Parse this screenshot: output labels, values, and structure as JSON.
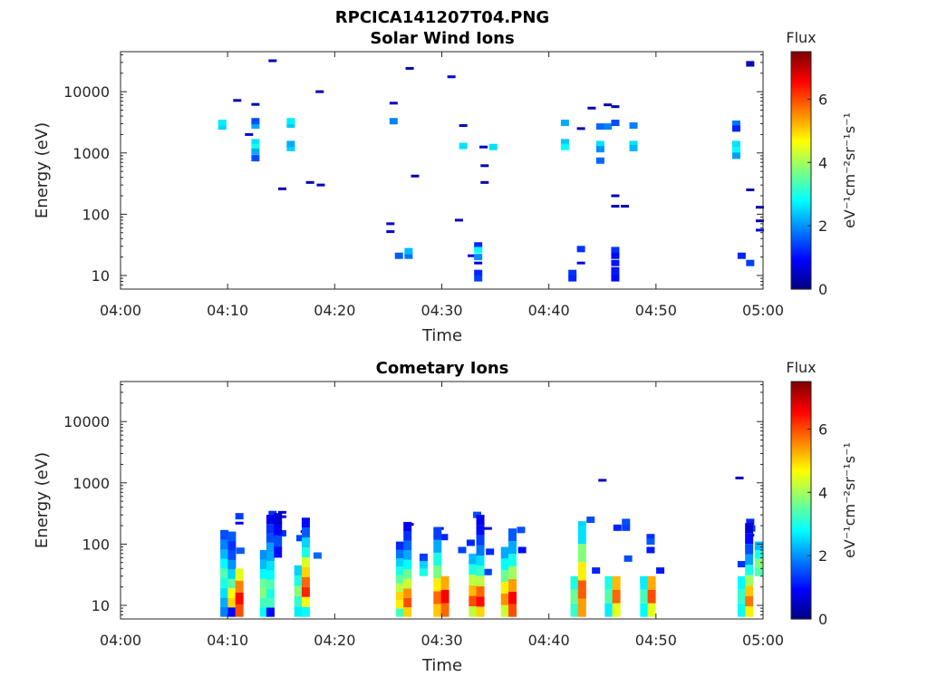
{
  "figure": {
    "title": "RPCICA141207T04.PNG",
    "colorbar_label": "Flux",
    "colorbar_unit": "eV⁻¹cm⁻²sr⁻¹s⁻¹",
    "colors": {
      "axis": "#262626",
      "background": "#ffffff",
      "colormap": [
        "#00007f",
        "#0000ff",
        "#007fff",
        "#00ffff",
        "#7fff7f",
        "#ffff00",
        "#ff7f00",
        "#ff0000",
        "#7f0000"
      ]
    }
  },
  "chart_data": [
    {
      "type": "heatmap",
      "title": "Solar Wind Ions",
      "xlabel": "Time",
      "ylabel": "Energy (eV)",
      "x_ticks": [
        "04:00",
        "04:10",
        "04:20",
        "04:30",
        "04:40",
        "04:50",
        "05:00"
      ],
      "xlim_minutes": [
        0,
        60
      ],
      "y_ticks": [
        "10",
        "100",
        "1000",
        "10000"
      ],
      "y_scale": "log",
      "ylim": [
        6,
        45000
      ],
      "colorbar": {
        "label": "Flux",
        "ticks": [
          "0",
          "2",
          "4",
          "6"
        ],
        "range": [
          0,
          7.5
        ]
      },
      "cells": [
        {
          "t": 9.5,
          "e": 2700,
          "v": 2.5
        },
        {
          "t": 9.5,
          "e": 3100,
          "v": 2.7
        },
        {
          "t": 10.9,
          "e": 7200,
          "v": 0.4
        },
        {
          "t": 12.0,
          "e": 2000,
          "v": 0.6
        },
        {
          "t": 12.6,
          "e": 6200,
          "v": 0.5
        },
        {
          "t": 12.6,
          "e": 2800,
          "v": 2.2
        },
        {
          "t": 12.6,
          "e": 3300,
          "v": 1.5
        },
        {
          "t": 12.6,
          "e": 1500,
          "v": 2.6
        },
        {
          "t": 12.6,
          "e": 1250,
          "v": 3.0
        },
        {
          "t": 12.6,
          "e": 1050,
          "v": 2.2
        },
        {
          "t": 12.6,
          "e": 820,
          "v": 1.5
        },
        {
          "t": 14.2,
          "e": 32000,
          "v": 0.4
        },
        {
          "t": 15.1,
          "e": 260,
          "v": 0.4
        },
        {
          "t": 15.9,
          "e": 2900,
          "v": 2.4
        },
        {
          "t": 15.9,
          "e": 3300,
          "v": 2.7
        },
        {
          "t": 15.9,
          "e": 1200,
          "v": 2.5
        },
        {
          "t": 15.9,
          "e": 1400,
          "v": 2.2
        },
        {
          "t": 17.7,
          "e": 330,
          "v": 0.4
        },
        {
          "t": 18.7,
          "e": 300,
          "v": 0.5
        },
        {
          "t": 18.6,
          "e": 10000,
          "v": 0.4
        },
        {
          "t": 25.5,
          "e": 6500,
          "v": 0.5
        },
        {
          "t": 25.5,
          "e": 3300,
          "v": 1.9
        },
        {
          "t": 25.2,
          "e": 70,
          "v": 0.6
        },
        {
          "t": 25.2,
          "e": 52,
          "v": 0.7
        },
        {
          "t": 26.0,
          "e": 21,
          "v": 1.6
        },
        {
          "t": 26.9,
          "e": 21,
          "v": 1.8
        },
        {
          "t": 26.9,
          "e": 25,
          "v": 2.3
        },
        {
          "t": 27.0,
          "e": 24000,
          "v": 0.4
        },
        {
          "t": 27.5,
          "e": 420,
          "v": 0.4
        },
        {
          "t": 30.9,
          "e": 17500,
          "v": 0.7
        },
        {
          "t": 31.6,
          "e": 80,
          "v": 0.5
        },
        {
          "t": 32.0,
          "e": 2800,
          "v": 0.5
        },
        {
          "t": 32.0,
          "e": 1300,
          "v": 2.6
        },
        {
          "t": 32.8,
          "e": 21,
          "v": 0.9
        },
        {
          "t": 33.4,
          "e": 31,
          "v": 1.2
        },
        {
          "t": 33.4,
          "e": 26,
          "v": 2.8
        },
        {
          "t": 33.4,
          "e": 20,
          "v": 2.0
        },
        {
          "t": 33.4,
          "e": 16,
          "v": 0.6
        },
        {
          "t": 33.4,
          "e": 11,
          "v": 1.2
        },
        {
          "t": 33.4,
          "e": 9,
          "v": 1.4
        },
        {
          "t": 33.9,
          "e": 1250,
          "v": 0.5
        },
        {
          "t": 34.0,
          "e": 620,
          "v": 0.4
        },
        {
          "t": 34.0,
          "e": 330,
          "v": 0.4
        },
        {
          "t": 34.8,
          "e": 1250,
          "v": 2.6
        },
        {
          "t": 41.5,
          "e": 3100,
          "v": 2.2
        },
        {
          "t": 41.5,
          "e": 1500,
          "v": 2.4
        },
        {
          "t": 41.5,
          "e": 1250,
          "v": 2.8
        },
        {
          "t": 42.2,
          "e": 11,
          "v": 1.3
        },
        {
          "t": 42.2,
          "e": 9,
          "v": 1.2
        },
        {
          "t": 43.0,
          "e": 27,
          "v": 1.3
        },
        {
          "t": 43.0,
          "e": 16,
          "v": 0.8
        },
        {
          "t": 43.0,
          "e": 2500,
          "v": 0.4
        },
        {
          "t": 44.0,
          "e": 5400,
          "v": 0.4
        },
        {
          "t": 44.8,
          "e": 2700,
          "v": 1.7
        },
        {
          "t": 44.8,
          "e": 1400,
          "v": 2.6
        },
        {
          "t": 44.8,
          "e": 1150,
          "v": 2.0
        },
        {
          "t": 44.8,
          "e": 750,
          "v": 1.7
        },
        {
          "t": 45.5,
          "e": 6100,
          "v": 0.4
        },
        {
          "t": 45.5,
          "e": 2700,
          "v": 1.9
        },
        {
          "t": 46.2,
          "e": 5700,
          "v": 0.4
        },
        {
          "t": 46.2,
          "e": 3100,
          "v": 1.5
        },
        {
          "t": 46.2,
          "e": 200,
          "v": 0.4
        },
        {
          "t": 46.2,
          "e": 135,
          "v": 0.4
        },
        {
          "t": 46.2,
          "e": 26,
          "v": 1.3
        },
        {
          "t": 46.2,
          "e": 21,
          "v": 1.0
        },
        {
          "t": 46.2,
          "e": 16,
          "v": 1.1
        },
        {
          "t": 46.2,
          "e": 13,
          "v": 0.8
        },
        {
          "t": 46.2,
          "e": 11,
          "v": 1.1
        },
        {
          "t": 46.2,
          "e": 9,
          "v": 1.0
        },
        {
          "t": 47.1,
          "e": 135,
          "v": 0.4
        },
        {
          "t": 47.9,
          "e": 2800,
          "v": 1.9
        },
        {
          "t": 47.9,
          "e": 1400,
          "v": 2.6
        },
        {
          "t": 47.9,
          "e": 1200,
          "v": 2.3
        },
        {
          "t": 57.5,
          "e": 3000,
          "v": 1.8
        },
        {
          "t": 57.5,
          "e": 2500,
          "v": 1.2
        },
        {
          "t": 57.5,
          "e": 1400,
          "v": 2.6
        },
        {
          "t": 57.5,
          "e": 1100,
          "v": 2.8
        },
        {
          "t": 57.5,
          "e": 900,
          "v": 2.1
        },
        {
          "t": 58.0,
          "e": 21,
          "v": 1.2
        },
        {
          "t": 58.8,
          "e": 30000,
          "v": 0.4
        },
        {
          "t": 58.8,
          "e": 27000,
          "v": 0.4
        },
        {
          "t": 58.8,
          "e": 250,
          "v": 0.4
        },
        {
          "t": 58.8,
          "e": 16,
          "v": 1.4
        },
        {
          "t": 59.7,
          "e": 130,
          "v": 0.4
        },
        {
          "t": 59.7,
          "e": 78,
          "v": 0.6
        },
        {
          "t": 59.7,
          "e": 55,
          "v": 0.8
        }
      ]
    },
    {
      "type": "heatmap",
      "title": "Cometary Ions",
      "xlabel": "Time",
      "ylabel": "Energy (eV)",
      "x_ticks": [
        "04:00",
        "04:10",
        "04:20",
        "04:30",
        "04:40",
        "04:50",
        "05:00"
      ],
      "xlim_minutes": [
        0,
        60
      ],
      "y_ticks": [
        "10",
        "100",
        "1000",
        "10000"
      ],
      "y_scale": "log",
      "ylim": [
        6,
        45000
      ],
      "colorbar": {
        "label": "Flux",
        "ticks": [
          "0",
          "2",
          "4",
          "6"
        ],
        "range": [
          0,
          7.5
        ]
      },
      "columns": [
        {
          "t": 9.7,
          "emin": 6.5,
          "emax": 170,
          "v": [
            1.9,
            2.2,
            2.6,
            3.0,
            3.4,
            2.8,
            2.3,
            1.9,
            1.5
          ]
        },
        {
          "t": 10.4,
          "emin": 6.5,
          "emax": 160,
          "v": [
            1.0,
            5.0,
            4.7,
            3.5,
            2.5,
            2.0,
            1.5,
            1.3,
            1.6
          ]
        },
        {
          "t": 11.1,
          "emin": 6.5,
          "emax": 40,
          "v": [
            6.0,
            6.5,
            5.6,
            4.5
          ]
        },
        {
          "t": 13.4,
          "emin": 6.5,
          "emax": 80,
          "v": [
            2.8,
            3.3,
            3.8,
            3.6,
            2.8,
            2.3,
            2.0
          ]
        },
        {
          "t": 14.0,
          "emin": 6.5,
          "emax": 300,
          "v": [
            1.0,
            3.3,
            3.0,
            3.4,
            2.8,
            2.6,
            2.2,
            2.1,
            1.5,
            1.3,
            0.8
          ]
        },
        {
          "t": 14.7,
          "emin": 60,
          "emax": 320,
          "v": [
            1.0,
            1.5,
            0.9,
            0.6
          ]
        },
        {
          "t": 16.6,
          "emin": 6.5,
          "emax": 45,
          "v": [
            2.7,
            3.2,
            3.8,
            3.0,
            2.5
          ]
        },
        {
          "t": 17.3,
          "emin": 6.5,
          "emax": 270,
          "v": [
            2.8,
            4.6,
            6.3,
            5.8,
            5.0,
            4.4,
            3.0,
            2.5,
            1.6,
            1.0
          ]
        },
        {
          "t": 26.1,
          "emin": 6.5,
          "emax": 110,
          "v": [
            3.3,
            4.8,
            5.0,
            4.2,
            3.5,
            3.0,
            2.5,
            1.8,
            1.2
          ]
        },
        {
          "t": 26.8,
          "emin": 6.5,
          "emax": 230,
          "v": [
            5.0,
            6.0,
            5.5,
            4.3,
            3.6,
            2.8,
            2.2,
            1.7,
            1.3,
            0.8
          ]
        },
        {
          "t": 28.3,
          "emin": 30,
          "emax": 70,
          "v": [
            3.0,
            2.5,
            1.4
          ]
        },
        {
          "t": 29.6,
          "emin": 6.5,
          "emax": 190,
          "v": [
            5.1,
            5.8,
            4.8,
            3.7,
            3.0,
            2.2,
            1.4
          ]
        },
        {
          "t": 30.3,
          "emin": 6.5,
          "emax": 30,
          "v": [
            5.8,
            6.6,
            5.3
          ]
        },
        {
          "t": 32.9,
          "emin": 6.5,
          "emax": 70,
          "v": [
            4.2,
            6.0,
            5.2,
            4.2,
            3.0,
            2.3
          ]
        },
        {
          "t": 33.6,
          "emin": 6.5,
          "emax": 300,
          "v": [
            5.0,
            6.5,
            5.8,
            4.2,
            3.2,
            2.6,
            1.8,
            1.4,
            1.0,
            0.8
          ]
        },
        {
          "t": 35.9,
          "emin": 6.5,
          "emax": 90,
          "v": [
            4.3,
            5.5,
            4.8,
            3.6,
            2.8,
            2.2
          ]
        },
        {
          "t": 36.6,
          "emin": 6.5,
          "emax": 180,
          "v": [
            6.0,
            6.6,
            5.4,
            4.0,
            3.0,
            2.2,
            1.6
          ]
        },
        {
          "t": 42.4,
          "emin": 6.5,
          "emax": 30,
          "v": [
            3.2,
            3.6,
            3.0
          ]
        },
        {
          "t": 43.1,
          "emin": 6.5,
          "emax": 200,
          "v": [
            5.4,
            5.9,
            4.8,
            3.8,
            2.6
          ]
        },
        {
          "t": 45.6,
          "emin": 6.5,
          "emax": 30,
          "v": [
            2.7,
            3.4,
            3.0
          ]
        },
        {
          "t": 46.3,
          "emin": 6.5,
          "emax": 30,
          "v": [
            4.5,
            5.8,
            5.2
          ]
        },
        {
          "t": 48.9,
          "emin": 6.5,
          "emax": 30,
          "v": [
            2.8,
            3.3,
            2.7
          ]
        },
        {
          "t": 49.6,
          "emin": 6.5,
          "emax": 30,
          "v": [
            4.5,
            6.0,
            5.3
          ]
        },
        {
          "t": 58.0,
          "emin": 6.5,
          "emax": 30,
          "v": [
            2.9,
            3.2,
            2.8
          ]
        },
        {
          "t": 58.7,
          "emin": 6.5,
          "emax": 220,
          "v": [
            4.8,
            5.7,
            5.1,
            4.0,
            3.0,
            2.1,
            1.5,
            1.0,
            0.6
          ]
        },
        {
          "t": 59.6,
          "emin": 30,
          "emax": 110,
          "v": [
            3.4,
            3.8,
            3.0,
            2.3
          ]
        }
      ],
      "cells": [
        {
          "t": 9.7,
          "e": 80,
          "v": 1.7
        },
        {
          "t": 10.4,
          "e": 78,
          "v": 1.4
        },
        {
          "t": 11.2,
          "e": 78,
          "v": 1.6
        },
        {
          "t": 11.1,
          "e": 285,
          "v": 1.4
        },
        {
          "t": 11.1,
          "e": 220,
          "v": 0.9
        },
        {
          "t": 14.2,
          "e": 310,
          "v": 1.3
        },
        {
          "t": 15.1,
          "e": 330,
          "v": 0.6
        },
        {
          "t": 15.1,
          "e": 280,
          "v": 0.8
        },
        {
          "t": 15.1,
          "e": 150,
          "v": 1.3
        },
        {
          "t": 14.7,
          "e": 220,
          "v": 0.5
        },
        {
          "t": 16.8,
          "e": 125,
          "v": 1.4
        },
        {
          "t": 17.2,
          "e": 160,
          "v": 0.8
        },
        {
          "t": 18.4,
          "e": 65,
          "v": 1.7
        },
        {
          "t": 27.0,
          "e": 210,
          "v": 0.8
        },
        {
          "t": 29.8,
          "e": 180,
          "v": 0.8
        },
        {
          "t": 30.2,
          "e": 130,
          "v": 1.2
        },
        {
          "t": 31.9,
          "e": 80,
          "v": 1.4
        },
        {
          "t": 32.7,
          "e": 105,
          "v": 1.2
        },
        {
          "t": 33.3,
          "e": 300,
          "v": 1.5
        },
        {
          "t": 34.3,
          "e": 180,
          "v": 0.6
        },
        {
          "t": 34.3,
          "e": 35,
          "v": 1.4
        },
        {
          "t": 34.5,
          "e": 75,
          "v": 1.2
        },
        {
          "t": 37.4,
          "e": 170,
          "v": 1.5
        },
        {
          "t": 37.5,
          "e": 80,
          "v": 1.0
        },
        {
          "t": 42.5,
          "e": 26,
          "v": 0.9
        },
        {
          "t": 43.1,
          "e": 210,
          "v": 2.5
        },
        {
          "t": 43.9,
          "e": 250,
          "v": 1.5
        },
        {
          "t": 44.4,
          "e": 37,
          "v": 1.2
        },
        {
          "t": 45.0,
          "e": 1100,
          "v": 0.5
        },
        {
          "t": 46.4,
          "e": 185,
          "v": 1.2
        },
        {
          "t": 47.2,
          "e": 185,
          "v": 1.4
        },
        {
          "t": 47.2,
          "e": 230,
          "v": 1.5
        },
        {
          "t": 47.4,
          "e": 58,
          "v": 1.5
        },
        {
          "t": 48.9,
          "e": 26,
          "v": 1.1
        },
        {
          "t": 49.5,
          "e": 130,
          "v": 1.3
        },
        {
          "t": 49.5,
          "e": 110,
          "v": 1.6
        },
        {
          "t": 49.5,
          "e": 80,
          "v": 1.1
        },
        {
          "t": 50.4,
          "e": 37,
          "v": 1.1
        },
        {
          "t": 57.8,
          "e": 1200,
          "v": 0.5
        },
        {
          "t": 58.0,
          "e": 47,
          "v": 1.3
        },
        {
          "t": 58.8,
          "e": 230,
          "v": 1.2
        },
        {
          "t": 58.9,
          "e": 180,
          "v": 1.4
        },
        {
          "t": 58.8,
          "e": 140,
          "v": 0.8
        }
      ]
    }
  ]
}
